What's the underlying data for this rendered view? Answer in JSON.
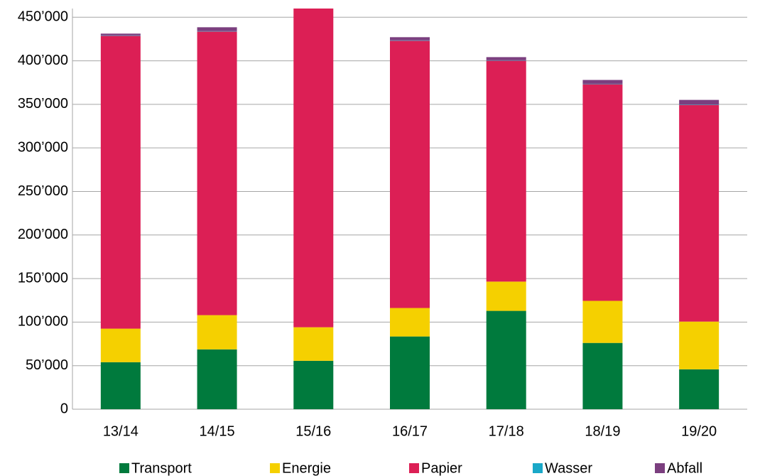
{
  "chart_data": {
    "type": "stacked_bar",
    "categories": [
      "13/14",
      "14/15",
      "15/16",
      "16/17",
      "17/18",
      "18/19",
      "19/20"
    ],
    "series": [
      {
        "name": "Transport",
        "color": "#007a3d",
        "values": [
          54000,
          68700,
          55600,
          83500,
          112900,
          76100,
          45800
        ]
      },
      {
        "name": "Energie",
        "color": "#f5d000",
        "values": [
          38500,
          39300,
          38500,
          32700,
          33600,
          48300,
          54800
        ]
      },
      {
        "name": "Papier",
        "color": "#dc1f55",
        "values": [
          336200,
          325600,
          370000,
          306800,
          253600,
          248700,
          248800
        ]
      },
      {
        "name": "Wasser",
        "color": "#1aa8c8",
        "values": [
          500,
          500,
          500,
          500,
          500,
          500,
          500
        ]
      },
      {
        "name": "Abfall",
        "color": "#7b3f7f",
        "values": [
          2000,
          4400,
          4000,
          3600,
          3600,
          4400,
          5200
        ]
      }
    ],
    "ylim": [
      0,
      460000
    ],
    "yticks": [
      0,
      {
        "value": 50000,
        "label": "50’000"
      },
      {
        "value": 100000,
        "label": "100’000"
      },
      {
        "value": 150000,
        "label": "150’000"
      },
      {
        "value": 200000,
        "label": "200’000"
      },
      {
        "value": 250000,
        "label": "250’000"
      },
      {
        "value": 300000,
        "label": "300’000"
      },
      {
        "value": 350000,
        "label": "350’000"
      },
      {
        "value": 400000,
        "label": "400’000"
      },
      {
        "value": 450000,
        "label": "450’000"
      }
    ],
    "grid": true,
    "legend": "bottom"
  }
}
